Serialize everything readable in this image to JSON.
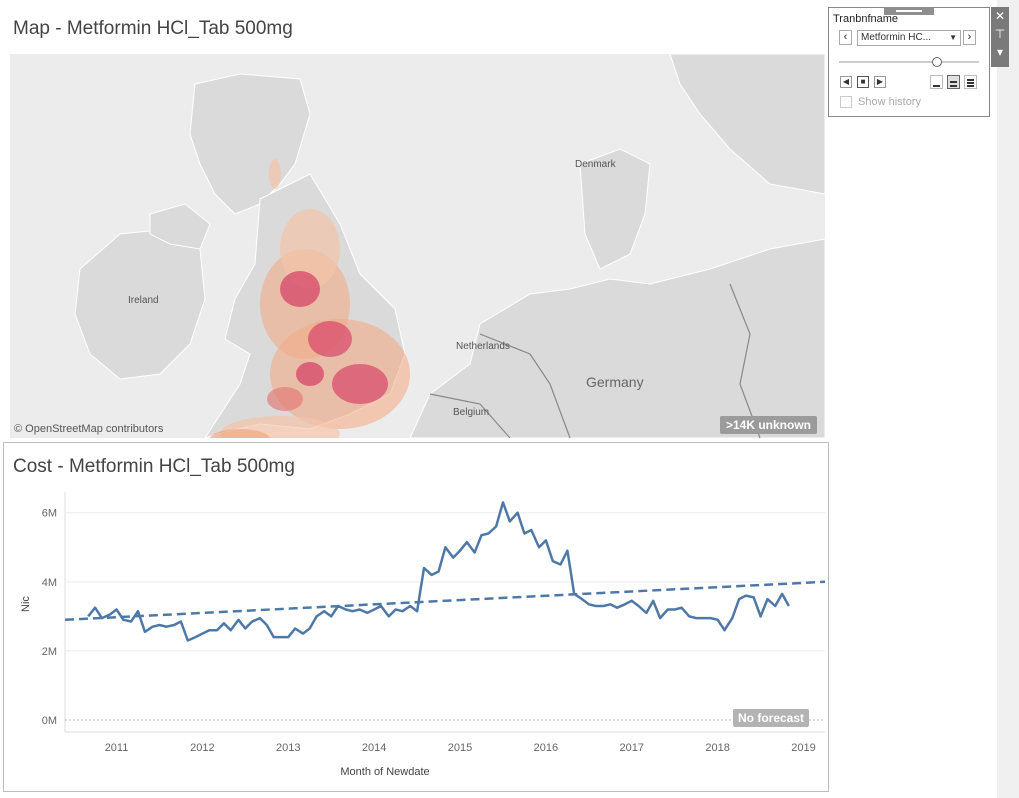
{
  "map": {
    "title": "Map - Metformin HCl_Tab 500mg",
    "labels": {
      "ireland": "Ireland",
      "denmark": "Denmark",
      "netherlands": "Netherlands",
      "belgium": "Belgium",
      "germany": "Germany"
    },
    "attribution": "© OpenStreetMap contributors",
    "unknown_badge": ">14K unknown"
  },
  "cost": {
    "title": "Cost - Metformin HCl_Tab 500mg",
    "no_forecast": "No forecast"
  },
  "filter": {
    "label": "Tranbnfname",
    "selected": "Metformin HC...",
    "prev_icon": "‹",
    "next_icon": "›",
    "show_history": "Show history"
  },
  "toolbar": {
    "close_icon": "✕",
    "pin_icon": "⊤",
    "menu_icon": "▾"
  },
  "chart_data": {
    "type": "line",
    "xlabel": "Month of Newdate",
    "ylabel": "Nic",
    "x_ticks": [
      "2011",
      "2012",
      "2013",
      "2014",
      "2015",
      "2016",
      "2017",
      "2018",
      "2019"
    ],
    "y_ticks": [
      "0M",
      "2M",
      "4M",
      "6M"
    ],
    "ylim": [
      0,
      6600000
    ],
    "xlim": [
      2010.4,
      2019.25
    ],
    "grid": true,
    "series": [
      {
        "color": "#4e79a7",
        "style": "solid",
        "points": [
          [
            2010.67,
            3.0
          ],
          [
            2010.75,
            3.25
          ],
          [
            2010.83,
            2.95
          ],
          [
            2010.92,
            3.05
          ],
          [
            2011.0,
            3.2
          ],
          [
            2011.08,
            2.9
          ],
          [
            2011.17,
            2.85
          ],
          [
            2011.25,
            3.15
          ],
          [
            2011.33,
            2.55
          ],
          [
            2011.42,
            2.7
          ],
          [
            2011.5,
            2.75
          ],
          [
            2011.58,
            2.7
          ],
          [
            2011.67,
            2.75
          ],
          [
            2011.75,
            2.85
          ],
          [
            2011.83,
            2.3
          ],
          [
            2011.92,
            2.4
          ],
          [
            2012.0,
            2.5
          ],
          [
            2012.08,
            2.6
          ],
          [
            2012.17,
            2.6
          ],
          [
            2012.25,
            2.8
          ],
          [
            2012.33,
            2.6
          ],
          [
            2012.42,
            2.9
          ],
          [
            2012.5,
            2.65
          ],
          [
            2012.58,
            2.85
          ],
          [
            2012.67,
            2.95
          ],
          [
            2012.75,
            2.75
          ],
          [
            2012.83,
            2.4
          ],
          [
            2012.92,
            2.4
          ],
          [
            2013.0,
            2.4
          ],
          [
            2013.08,
            2.65
          ],
          [
            2013.17,
            2.5
          ],
          [
            2013.25,
            2.65
          ],
          [
            2013.33,
            3.0
          ],
          [
            2013.42,
            3.15
          ],
          [
            2013.5,
            3.0
          ],
          [
            2013.58,
            3.3
          ],
          [
            2013.67,
            3.2
          ],
          [
            2013.75,
            3.15
          ],
          [
            2013.83,
            3.2
          ],
          [
            2013.92,
            3.1
          ],
          [
            2014.0,
            3.2
          ],
          [
            2014.08,
            3.3
          ],
          [
            2014.17,
            3.0
          ],
          [
            2014.25,
            3.2
          ],
          [
            2014.33,
            3.15
          ],
          [
            2014.42,
            3.3
          ],
          [
            2014.5,
            3.15
          ],
          [
            2014.58,
            4.4
          ],
          [
            2014.67,
            4.2
          ],
          [
            2014.75,
            4.3
          ],
          [
            2014.83,
            5.0
          ],
          [
            2014.92,
            4.7
          ],
          [
            2015.0,
            4.9
          ],
          [
            2015.08,
            5.15
          ],
          [
            2015.17,
            4.85
          ],
          [
            2015.25,
            5.35
          ],
          [
            2015.33,
            5.4
          ],
          [
            2015.42,
            5.6
          ],
          [
            2015.5,
            6.3
          ],
          [
            2015.58,
            5.75
          ],
          [
            2015.67,
            6.0
          ],
          [
            2015.75,
            5.4
          ],
          [
            2015.83,
            5.5
          ],
          [
            2015.92,
            5.0
          ],
          [
            2016.0,
            5.2
          ],
          [
            2016.08,
            4.6
          ],
          [
            2016.17,
            4.5
          ],
          [
            2016.25,
            4.9
          ],
          [
            2016.33,
            3.65
          ],
          [
            2016.42,
            3.5
          ],
          [
            2016.5,
            3.35
          ],
          [
            2016.58,
            3.3
          ],
          [
            2016.67,
            3.3
          ],
          [
            2016.75,
            3.35
          ],
          [
            2016.83,
            3.25
          ],
          [
            2016.92,
            3.35
          ],
          [
            2017.0,
            3.45
          ],
          [
            2017.08,
            3.3
          ],
          [
            2017.17,
            3.1
          ],
          [
            2017.25,
            3.45
          ],
          [
            2017.33,
            2.95
          ],
          [
            2017.42,
            3.2
          ],
          [
            2017.5,
            3.2
          ],
          [
            2017.58,
            3.25
          ],
          [
            2017.67,
            3.0
          ],
          [
            2017.75,
            2.95
          ],
          [
            2017.83,
            2.95
          ],
          [
            2017.92,
            2.95
          ],
          [
            2018.0,
            2.9
          ],
          [
            2018.08,
            2.6
          ],
          [
            2018.17,
            2.95
          ],
          [
            2018.25,
            3.5
          ],
          [
            2018.33,
            3.6
          ],
          [
            2018.42,
            3.55
          ],
          [
            2018.5,
            3.0
          ],
          [
            2018.58,
            3.5
          ],
          [
            2018.67,
            3.3
          ],
          [
            2018.75,
            3.65
          ],
          [
            2018.83,
            3.3
          ]
        ]
      },
      {
        "color": "#4e79a7",
        "style": "dashed",
        "points": [
          [
            2010.4,
            2.9
          ],
          [
            2019.25,
            4.0
          ]
        ]
      }
    ]
  }
}
